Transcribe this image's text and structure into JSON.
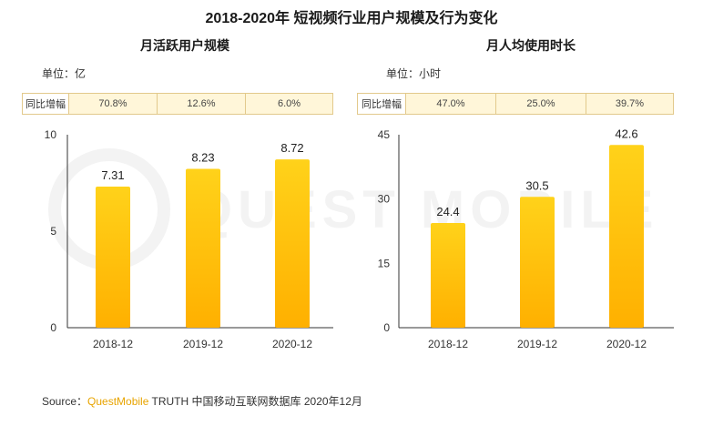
{
  "title": "2018-2020年 短视频行业用户规模及行为变化",
  "watermark": "QUEST MOBILE",
  "source": {
    "prefix": "Source：",
    "brand": "QuestMobile",
    "rest": " TRUTH 中国移动互联网数据库 2020年12月"
  },
  "colors": {
    "bar_top": "#ffd21a",
    "bar_bottom": "#ffb000",
    "axis": "#333333",
    "growth_bg": "#fff6d9",
    "growth_border": "#e2c98c"
  },
  "chart_data": [
    {
      "type": "bar",
      "title": "月活跃用户规模",
      "unit": "单位：亿",
      "categories": [
        "2018-12",
        "2019-12",
        "2020-12"
      ],
      "values": [
        7.31,
        8.23,
        8.72
      ],
      "value_labels": [
        "7.31",
        "8.23",
        "8.72"
      ],
      "ylim": [
        0,
        10
      ],
      "yticks": [
        0,
        5,
        10
      ],
      "growth_label": "同比增幅",
      "growth": [
        "70.8%",
        "12.6%",
        "6.0%"
      ]
    },
    {
      "type": "bar",
      "title": "月人均使用时长",
      "unit": "单位：小时",
      "categories": [
        "2018-12",
        "2019-12",
        "2020-12"
      ],
      "values": [
        24.4,
        30.5,
        42.6
      ],
      "value_labels": [
        "24.4",
        "30.5",
        "42.6"
      ],
      "ylim": [
        0,
        45
      ],
      "yticks": [
        0,
        15,
        30,
        45
      ],
      "growth_label": "同比增幅",
      "growth": [
        "47.0%",
        "25.0%",
        "39.7%"
      ]
    }
  ]
}
